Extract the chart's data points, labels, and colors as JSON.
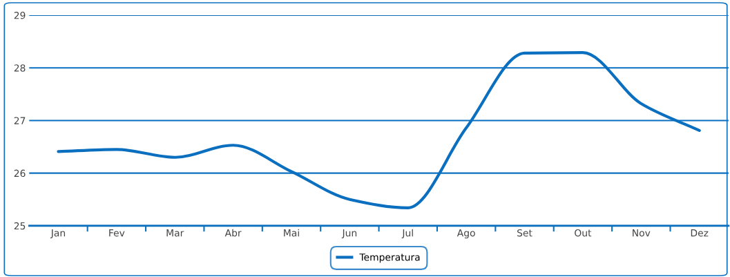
{
  "chart_data": {
    "type": "line",
    "categories": [
      "Jan",
      "Fev",
      "Mar",
      "Abr",
      "Mai",
      "Jun",
      "Jul",
      "Ago",
      "Set",
      "Out",
      "Nov",
      "Dez"
    ],
    "series": [
      {
        "name": "Temperatura",
        "color": "#0b6fc0",
        "values": [
          26.41,
          26.45,
          26.3,
          26.53,
          26.03,
          25.5,
          25.34,
          26.86,
          28.28,
          28.29,
          27.32,
          26.81
        ]
      }
    ],
    "ylim": [
      25,
      29
    ],
    "yticks": [
      25,
      26,
      27,
      28,
      29
    ],
    "grid": "y",
    "legend": "bottom",
    "marker": "none",
    "line_style": "solid"
  }
}
